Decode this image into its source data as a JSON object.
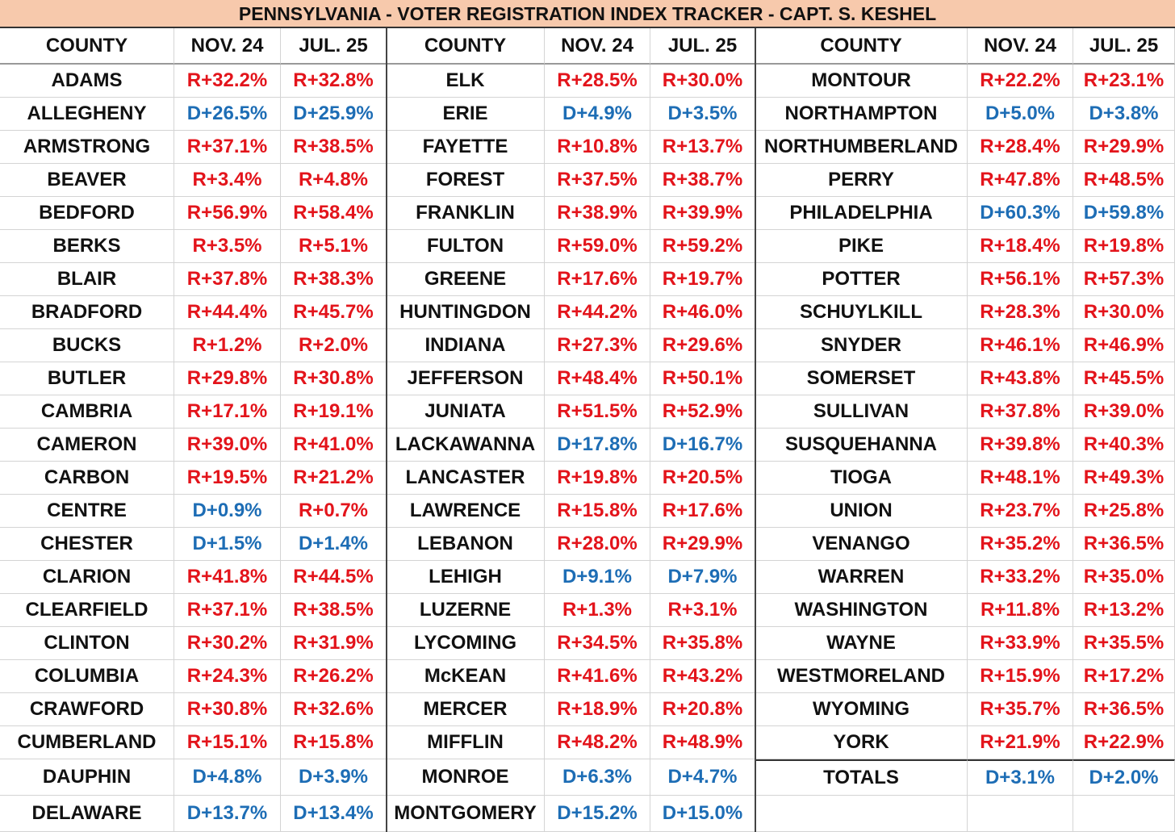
{
  "title": "PENNSYLVANIA - VOTER REGISTRATION INDEX TRACKER - CAPT. S. KESHEL",
  "sections": [
    {
      "headers": [
        "COUNTY",
        "NOV. 24",
        "JUL. 25"
      ],
      "rows": [
        [
          "ADAMS",
          "R+32.2%",
          "R+32.8%"
        ],
        [
          "ALLEGHENY",
          "D+26.5%",
          "D+25.9%"
        ],
        [
          "ARMSTRONG",
          "R+37.1%",
          "R+38.5%"
        ],
        [
          "BEAVER",
          "R+3.4%",
          "R+4.8%"
        ],
        [
          "BEDFORD",
          "R+56.9%",
          "R+58.4%"
        ],
        [
          "BERKS",
          "R+3.5%",
          "R+5.1%"
        ],
        [
          "BLAIR",
          "R+37.8%",
          "R+38.3%"
        ],
        [
          "BRADFORD",
          "R+44.4%",
          "R+45.7%"
        ],
        [
          "BUCKS",
          "R+1.2%",
          "R+2.0%"
        ],
        [
          "BUTLER",
          "R+29.8%",
          "R+30.8%"
        ],
        [
          "CAMBRIA",
          "R+17.1%",
          "R+19.1%"
        ],
        [
          "CAMERON",
          "R+39.0%",
          "R+41.0%"
        ],
        [
          "CARBON",
          "R+19.5%",
          "R+21.2%"
        ],
        [
          "CENTRE",
          "D+0.9%",
          "R+0.7%"
        ],
        [
          "CHESTER",
          "D+1.5%",
          "D+1.4%"
        ],
        [
          "CLARION",
          "R+41.8%",
          "R+44.5%"
        ],
        [
          "CLEARFIELD",
          "R+37.1%",
          "R+38.5%"
        ],
        [
          "CLINTON",
          "R+30.2%",
          "R+31.9%"
        ],
        [
          "COLUMBIA",
          "R+24.3%",
          "R+26.2%"
        ],
        [
          "CRAWFORD",
          "R+30.8%",
          "R+32.6%"
        ],
        [
          "CUMBERLAND",
          "R+15.1%",
          "R+15.8%"
        ],
        [
          "DAUPHIN",
          "D+4.8%",
          "D+3.9%"
        ],
        [
          "DELAWARE",
          "D+13.7%",
          "D+13.4%"
        ]
      ]
    },
    {
      "headers": [
        "COUNTY",
        "NOV. 24",
        "JUL. 25"
      ],
      "rows": [
        [
          "ELK",
          "R+28.5%",
          "R+30.0%"
        ],
        [
          "ERIE",
          "D+4.9%",
          "D+3.5%"
        ],
        [
          "FAYETTE",
          "R+10.8%",
          "R+13.7%"
        ],
        [
          "FOREST",
          "R+37.5%",
          "R+38.7%"
        ],
        [
          "FRANKLIN",
          "R+38.9%",
          "R+39.9%"
        ],
        [
          "FULTON",
          "R+59.0%",
          "R+59.2%"
        ],
        [
          "GREENE",
          "R+17.6%",
          "R+19.7%"
        ],
        [
          "HUNTINGDON",
          "R+44.2%",
          "R+46.0%"
        ],
        [
          "INDIANA",
          "R+27.3%",
          "R+29.6%"
        ],
        [
          "JEFFERSON",
          "R+48.4%",
          "R+50.1%"
        ],
        [
          "JUNIATA",
          "R+51.5%",
          "R+52.9%"
        ],
        [
          "LACKAWANNA",
          "D+17.8%",
          "D+16.7%"
        ],
        [
          "LANCASTER",
          "R+19.8%",
          "R+20.5%"
        ],
        [
          "LAWRENCE",
          "R+15.8%",
          "R+17.6%"
        ],
        [
          "LEBANON",
          "R+28.0%",
          "R+29.9%"
        ],
        [
          "LEHIGH",
          "D+9.1%",
          "D+7.9%"
        ],
        [
          "LUZERNE",
          "R+1.3%",
          "R+3.1%"
        ],
        [
          "LYCOMING",
          "R+34.5%",
          "R+35.8%"
        ],
        [
          "McKEAN",
          "R+41.6%",
          "R+43.2%"
        ],
        [
          "MERCER",
          "R+18.9%",
          "R+20.8%"
        ],
        [
          "MIFFLIN",
          "R+48.2%",
          "R+48.9%"
        ],
        [
          "MONROE",
          "D+6.3%",
          "D+4.7%"
        ],
        [
          "MONTGOMERY",
          "D+15.2%",
          "D+15.0%"
        ]
      ]
    },
    {
      "headers": [
        "COUNTY",
        "NOV. 24",
        "JUL. 25"
      ],
      "rows": [
        [
          "MONTOUR",
          "R+22.2%",
          "R+23.1%"
        ],
        [
          "NORTHAMPTON",
          "D+5.0%",
          "D+3.8%"
        ],
        [
          "NORTHUMBERLAND",
          "R+28.4%",
          "R+29.9%"
        ],
        [
          "PERRY",
          "R+47.8%",
          "R+48.5%"
        ],
        [
          "PHILADELPHIA",
          "D+60.3%",
          "D+59.8%"
        ],
        [
          "PIKE",
          "R+18.4%",
          "R+19.8%"
        ],
        [
          "POTTER",
          "R+56.1%",
          "R+57.3%"
        ],
        [
          "SCHUYLKILL",
          "R+28.3%",
          "R+30.0%"
        ],
        [
          "SNYDER",
          "R+46.1%",
          "R+46.9%"
        ],
        [
          "SOMERSET",
          "R+43.8%",
          "R+45.5%"
        ],
        [
          "SULLIVAN",
          "R+37.8%",
          "R+39.0%"
        ],
        [
          "SUSQUEHANNA",
          "R+39.8%",
          "R+40.3%"
        ],
        [
          "TIOGA",
          "R+48.1%",
          "R+49.3%"
        ],
        [
          "UNION",
          "R+23.7%",
          "R+25.8%"
        ],
        [
          "VENANGO",
          "R+35.2%",
          "R+36.5%"
        ],
        [
          "WARREN",
          "R+33.2%",
          "R+35.0%"
        ],
        [
          "WASHINGTON",
          "R+11.8%",
          "R+13.2%"
        ],
        [
          "WAYNE",
          "R+33.9%",
          "R+35.5%"
        ],
        [
          "WESTMORELAND",
          "R+15.9%",
          "R+17.2%"
        ],
        [
          "WYOMING",
          "R+35.7%",
          "R+36.5%"
        ],
        [
          "YORK",
          "R+21.9%",
          "R+22.9%"
        ]
      ],
      "totals": [
        "TOTALS",
        "D+3.1%",
        "D+2.0%"
      ]
    }
  ]
}
